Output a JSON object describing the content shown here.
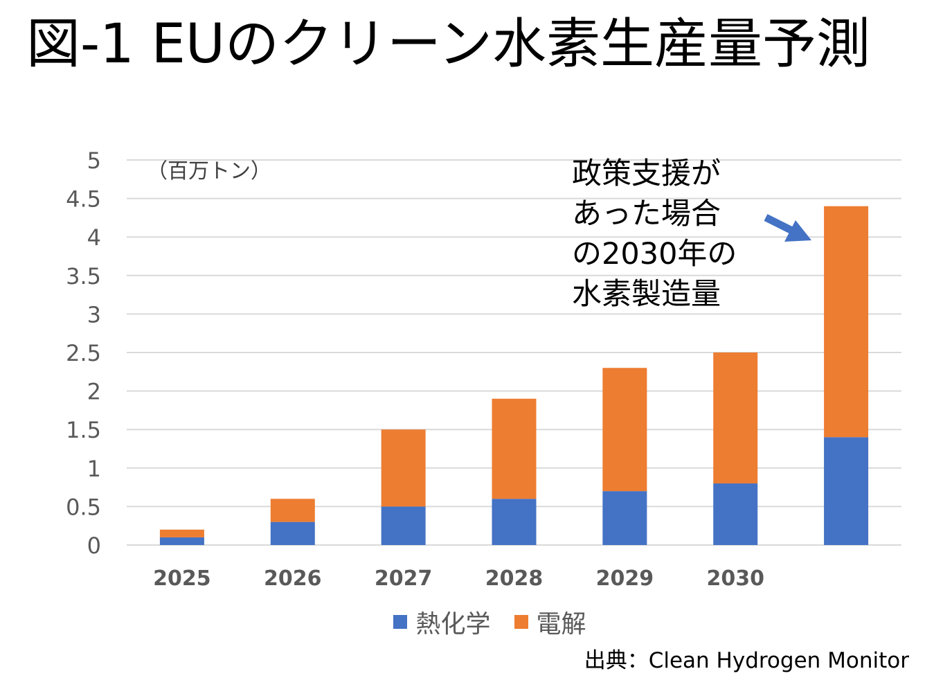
{
  "title": "図-1 EUのクリーン水素生産量予測",
  "unit_label": "（百万トン）",
  "annotation": [
    "政策支援が",
    "あった場合",
    "の2030年の",
    "水素製造量"
  ],
  "source": "出典：Clean Hydrogen Monitor",
  "colors": {
    "thermochemical": "#4472C4",
    "electrolysis": "#ED7D31",
    "grid": "#D9D9D9",
    "arrow": "#4472C4",
    "axis_text": "#595959"
  },
  "chart_data": {
    "type": "bar",
    "stacked": true,
    "categories": [
      "2025",
      "2026",
      "2027",
      "2028",
      "2029",
      "2030",
      ""
    ],
    "series": [
      {
        "name": "熱化学",
        "values": [
          0.1,
          0.3,
          0.5,
          0.6,
          0.7,
          0.8,
          1.4
        ]
      },
      {
        "name": "電解",
        "values": [
          0.1,
          0.3,
          1.0,
          1.3,
          1.6,
          1.7,
          3.0
        ]
      }
    ],
    "ylim": [
      0,
      5
    ],
    "yticks": [
      "0",
      "0.5",
      "1",
      "1.5",
      "2",
      "2.5",
      "3",
      "3.5",
      "4",
      "4.5",
      "5"
    ],
    "grid": true,
    "legend_position": "bottom"
  }
}
